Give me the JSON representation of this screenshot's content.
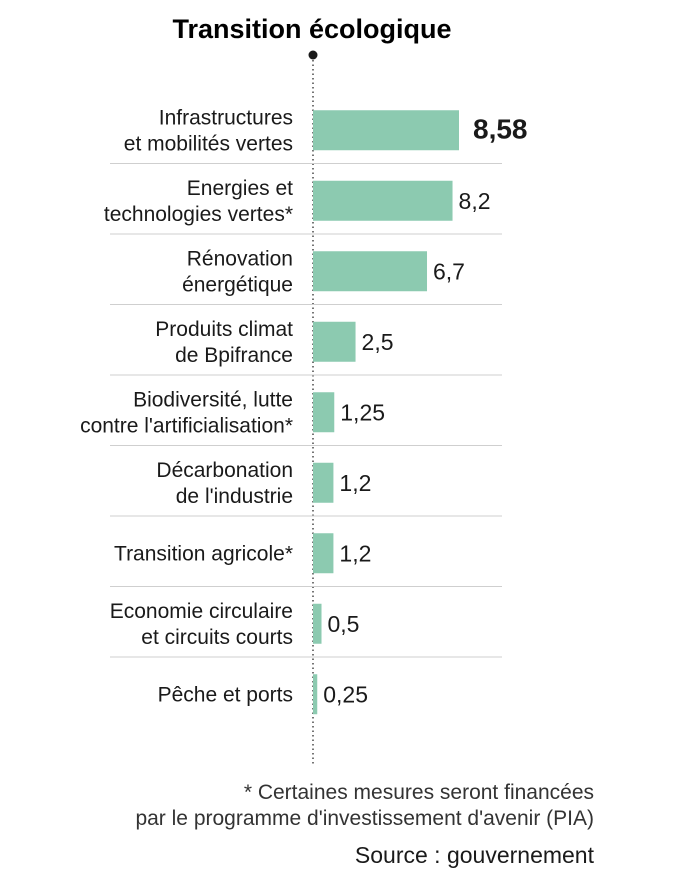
{
  "chart_data": {
    "type": "bar",
    "orientation": "horizontal",
    "title": "Transition écologique",
    "categories": [
      [
        "Infrastructures",
        "et mobilités vertes"
      ],
      [
        "Energies et",
        "technologies vertes*"
      ],
      [
        "Rénovation",
        "énergétique"
      ],
      [
        "Produits climat",
        "de Bpifrance"
      ],
      [
        "Biodiversité, lutte",
        "contre l'artificialisation*"
      ],
      [
        "Décarbonation",
        "de l'industrie"
      ],
      [
        "Transition agricole*"
      ],
      [
        "Economie circulaire",
        "et circuits courts"
      ],
      [
        "Pêche et ports"
      ]
    ],
    "values": [
      8.58,
      8.2,
      6.7,
      2.5,
      1.25,
      1.2,
      1.2,
      0.5,
      0.25
    ],
    "value_labels": [
      "8,58",
      "8,2",
      "6,7",
      "2,5",
      "1,25",
      "1,2",
      "1,2",
      "0,5",
      "0,25"
    ],
    "highlight_index": 0,
    "xlim": [
      0,
      8.58
    ],
    "grid": false,
    "bar_color": "#8ccab0"
  },
  "footnote": {
    "line1": "* Certaines mesures seront financées",
    "line2": "par le programme d'investissement d'avenir (PIA)"
  },
  "source": "Source : gouvernement",
  "colors": {
    "bar": "#8ccab0",
    "separator": "#cfcfcf",
    "axis": "#1a1a1a"
  }
}
